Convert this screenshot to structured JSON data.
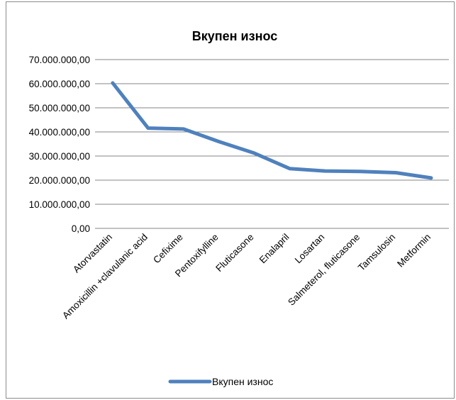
{
  "chart_data": {
    "type": "line",
    "title": "Вкупен износ",
    "xlabel": "",
    "ylabel": "",
    "categories": [
      "Atorvastatin",
      "Amoxicillin +clavulanic acid",
      "Cefixime",
      "Pentoxifylline",
      "Fluticasone",
      "Enalapril",
      "Losartan",
      "Salmeterol, fluticasone",
      "Tamsulosin",
      "Metformin"
    ],
    "series": [
      {
        "name": "Вкупен износ",
        "color": "#4f81bd",
        "values": [
          60300000,
          41600000,
          41200000,
          36000000,
          31200000,
          24800000,
          23800000,
          23600000,
          23100000,
          20900000
        ]
      }
    ],
    "ylim": [
      0,
      70000000
    ],
    "y_ticks": [
      0,
      10000000,
      20000000,
      30000000,
      40000000,
      50000000,
      60000000,
      70000000
    ],
    "y_tick_labels": [
      "0,00",
      "10.000.000,00",
      "20.000.000,00",
      "30.000.000,00",
      "40.000.000,00",
      "50.000.000,00",
      "60.000.000,00",
      "70.000.000,00"
    ],
    "grid": true,
    "legend": "bottom"
  }
}
